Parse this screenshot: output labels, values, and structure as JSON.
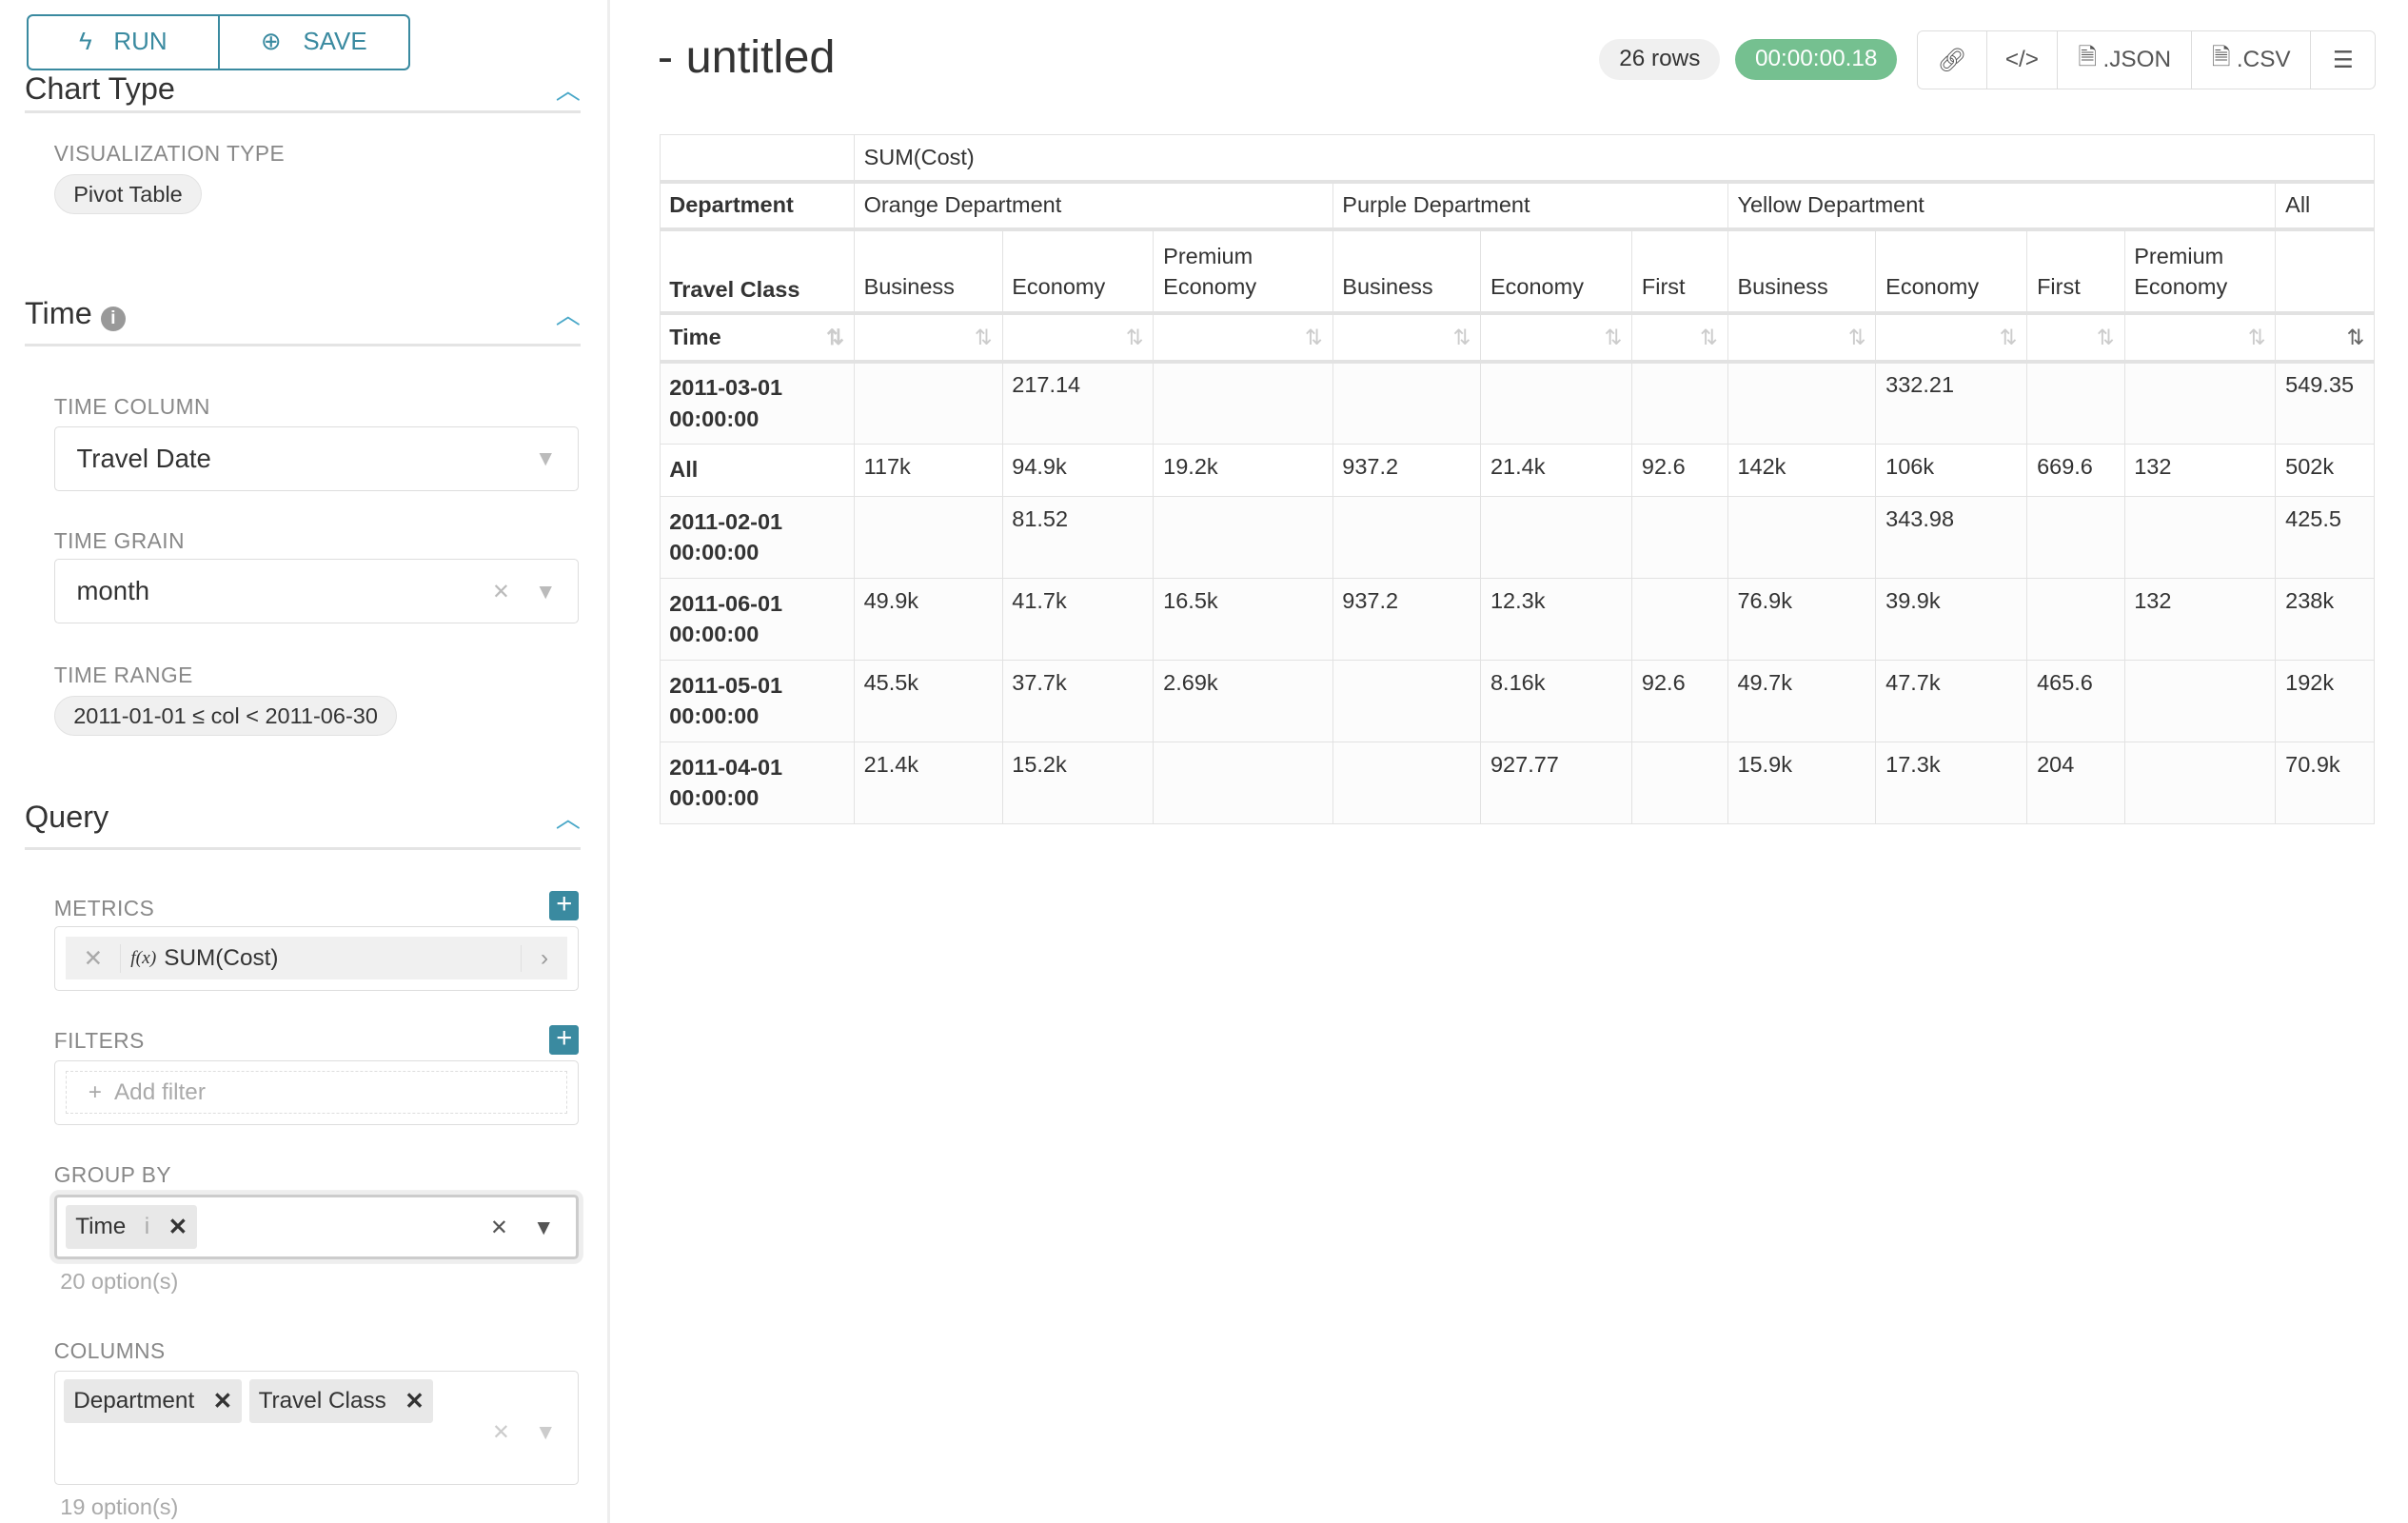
{
  "sidebar": {
    "run_label": "RUN",
    "save_label": "SAVE",
    "chart_type_header": "Chart Type",
    "visualization_type_label": "VISUALIZATION TYPE",
    "visualization_type": "Pivot Table",
    "time_header": "Time",
    "time_column_label": "TIME COLUMN",
    "time_column": "Travel Date",
    "time_grain_label": "TIME GRAIN",
    "time_grain": "month",
    "time_range_label": "TIME RANGE",
    "time_range": "2011-01-01 ≤ col < 2011-06-30",
    "query_header": "Query",
    "metrics_label": "METRICS",
    "metric": "SUM(Cost)",
    "metric_fx": "f(x)",
    "filters_label": "FILTERS",
    "add_filter": "Add filter",
    "group_by_label": "GROUP BY",
    "group_by_tag": "Time",
    "group_by_hint": "20 option(s)",
    "columns_label": "COLUMNS",
    "columns_tags": [
      "Department",
      "Travel Class"
    ],
    "columns_hint": "19 option(s)"
  },
  "header": {
    "title": "- untitled",
    "rows": "26 rows",
    "duration": "00:00:00.18",
    "json": ".JSON",
    "csv": ".CSV"
  },
  "colors": {
    "accent": "#3a8aa0",
    "success": "#75c090"
  },
  "table": {
    "metric": "SUM(Cost)",
    "dept_label": "Department",
    "class_label": "Travel Class",
    "time_label": "Time",
    "departments": [
      {
        "name": "Orange Department",
        "span": 3
      },
      {
        "name": "Purple Department",
        "span": 3
      },
      {
        "name": "Yellow Department",
        "span": 4
      },
      {
        "name": "All",
        "span": 1
      }
    ],
    "classes": [
      "Business",
      "Economy",
      "Premium Economy",
      "Business",
      "Economy",
      "First",
      "Business",
      "Economy",
      "First",
      "Premium Economy",
      ""
    ],
    "rows": [
      {
        "label": "2011-03-01 00:00:00",
        "values": [
          "",
          "217.14",
          "",
          "",
          "",
          "",
          "",
          "332.21",
          "",
          "",
          "549.35"
        ]
      },
      {
        "label": "All",
        "values": [
          "117k",
          "94.9k",
          "19.2k",
          "937.2",
          "21.4k",
          "92.6",
          "142k",
          "106k",
          "669.6",
          "132",
          "502k"
        ]
      },
      {
        "label": "2011-02-01 00:00:00",
        "values": [
          "",
          "81.52",
          "",
          "",
          "",
          "",
          "",
          "343.98",
          "",
          "",
          "425.5"
        ]
      },
      {
        "label": "2011-06-01 00:00:00",
        "values": [
          "49.9k",
          "41.7k",
          "16.5k",
          "937.2",
          "12.3k",
          "",
          "76.9k",
          "39.9k",
          "",
          "132",
          "238k"
        ]
      },
      {
        "label": "2011-05-01 00:00:00",
        "values": [
          "45.5k",
          "37.7k",
          "2.69k",
          "",
          "8.16k",
          "92.6",
          "49.7k",
          "47.7k",
          "465.6",
          "",
          "192k"
        ]
      },
      {
        "label": "2011-04-01 00:00:00",
        "values": [
          "21.4k",
          "15.2k",
          "",
          "",
          "927.77",
          "",
          "15.9k",
          "17.3k",
          "204",
          "",
          "70.9k"
        ]
      }
    ]
  }
}
